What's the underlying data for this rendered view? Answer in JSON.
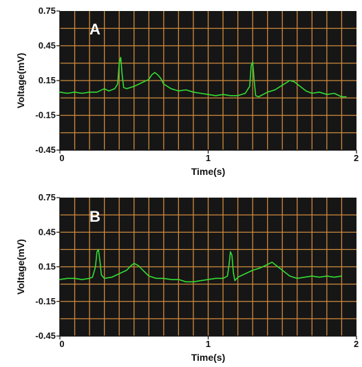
{
  "chart_data": [
    {
      "type": "line",
      "panel_label": "A",
      "xlabel": "Time(s)",
      "ylabel": "Voltage(mV)",
      "xlim": [
        0,
        2
      ],
      "ylim": [
        -0.45,
        0.75
      ],
      "x_ticks": [
        "0",
        "1",
        "2"
      ],
      "y_ticks": [
        "0.75",
        "0.45",
        "0.15",
        "-0.15",
        "-0.45"
      ],
      "grid": true,
      "colors": {
        "background": "#161616",
        "grid": "#d18b3c",
        "trace": "#33dd33"
      },
      "series": [
        {
          "x": [
            0.0,
            0.05,
            0.1,
            0.15,
            0.2,
            0.25,
            0.3,
            0.33,
            0.37,
            0.39,
            0.4,
            0.41,
            0.42,
            0.43,
            0.45,
            0.5,
            0.55,
            0.6,
            0.62,
            0.64,
            0.66,
            0.68,
            0.7,
            0.75,
            0.8,
            0.85,
            0.9,
            0.95,
            1.0,
            1.05,
            1.1,
            1.15,
            1.2,
            1.25,
            1.28,
            1.29,
            1.3,
            1.31,
            1.32,
            1.34,
            1.4,
            1.45,
            1.5,
            1.55,
            1.58,
            1.62,
            1.66,
            1.7,
            1.75,
            1.8,
            1.85,
            1.9,
            1.93
          ],
          "y": [
            0.05,
            0.04,
            0.05,
            0.04,
            0.05,
            0.05,
            0.08,
            0.06,
            0.08,
            0.12,
            0.3,
            0.35,
            0.2,
            0.09,
            0.08,
            0.1,
            0.13,
            0.16,
            0.2,
            0.22,
            0.2,
            0.17,
            0.12,
            0.08,
            0.06,
            0.07,
            0.05,
            0.04,
            0.03,
            0.02,
            0.03,
            0.02,
            0.02,
            0.04,
            0.1,
            0.28,
            0.31,
            0.15,
            0.02,
            0.01,
            0.05,
            0.07,
            0.11,
            0.15,
            0.14,
            0.1,
            0.06,
            0.04,
            0.05,
            0.03,
            0.04,
            0.01,
            0.01
          ]
        }
      ]
    },
    {
      "type": "line",
      "panel_label": "B",
      "xlabel": "Time(s)",
      "ylabel": "Voltage(mV)",
      "xlim": [
        0,
        2
      ],
      "ylim": [
        -0.45,
        0.75
      ],
      "x_ticks": [
        "0",
        "1",
        "2"
      ],
      "y_ticks": [
        "0.75",
        "0.45",
        "0.15",
        "-0.15",
        "-0.45"
      ],
      "grid": true,
      "colors": {
        "background": "#161616",
        "grid": "#d18b3c",
        "trace": "#33dd33"
      },
      "series": [
        {
          "x": [
            0.0,
            0.05,
            0.1,
            0.15,
            0.2,
            0.22,
            0.24,
            0.25,
            0.26,
            0.27,
            0.28,
            0.3,
            0.35,
            0.4,
            0.45,
            0.48,
            0.5,
            0.53,
            0.56,
            0.6,
            0.65,
            0.7,
            0.75,
            0.8,
            0.85,
            0.9,
            0.95,
            1.0,
            1.05,
            1.1,
            1.13,
            1.14,
            1.15,
            1.16,
            1.17,
            1.18,
            1.2,
            1.25,
            1.3,
            1.35,
            1.4,
            1.43,
            1.46,
            1.5,
            1.55,
            1.6,
            1.65,
            1.7,
            1.75,
            1.8,
            1.85,
            1.9
          ],
          "y": [
            0.04,
            0.05,
            0.05,
            0.04,
            0.05,
            0.06,
            0.15,
            0.28,
            0.3,
            0.2,
            0.08,
            0.05,
            0.06,
            0.09,
            0.12,
            0.16,
            0.18,
            0.16,
            0.12,
            0.07,
            0.05,
            0.05,
            0.04,
            0.04,
            0.02,
            0.02,
            0.03,
            0.04,
            0.05,
            0.05,
            0.07,
            0.16,
            0.28,
            0.25,
            0.1,
            0.03,
            0.06,
            0.09,
            0.12,
            0.14,
            0.17,
            0.19,
            0.16,
            0.12,
            0.07,
            0.05,
            0.06,
            0.07,
            0.06,
            0.07,
            0.06,
            0.07
          ]
        }
      ]
    }
  ]
}
